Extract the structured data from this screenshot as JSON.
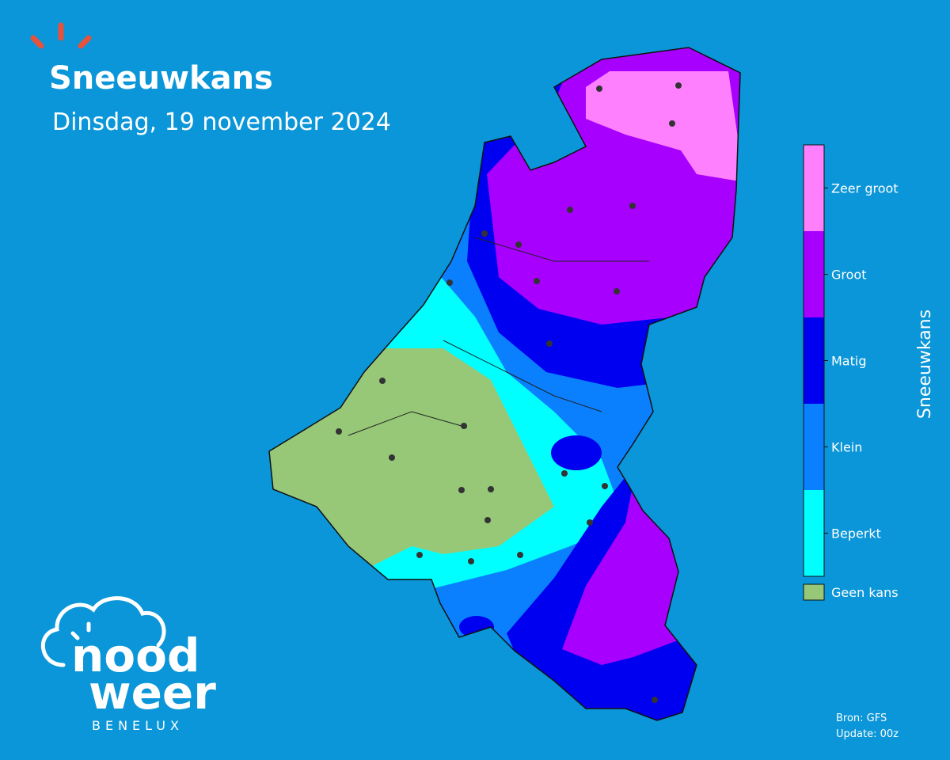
{
  "header": {
    "title": "Sneeuwkans",
    "subtitle": "Dinsdag, 19 november 2024"
  },
  "legend": {
    "title": "Sneeuwkans",
    "items": [
      {
        "label": "Zeer groot",
        "color": "#ff80ff"
      },
      {
        "label": "Groot",
        "color": "#a800ff"
      },
      {
        "label": "Matig",
        "color": "#0000f0"
      },
      {
        "label": "Klein",
        "color": "#0a80ff"
      },
      {
        "label": "Beperkt",
        "color": "#00ffff"
      },
      {
        "label": "Geen kans",
        "color": "#96c878"
      }
    ]
  },
  "logo": {
    "line1": "nood",
    "line2": "weer",
    "tagline": "BENELUX"
  },
  "footer": {
    "source": "Bron: GFS",
    "update": "Update: 00z"
  }
}
